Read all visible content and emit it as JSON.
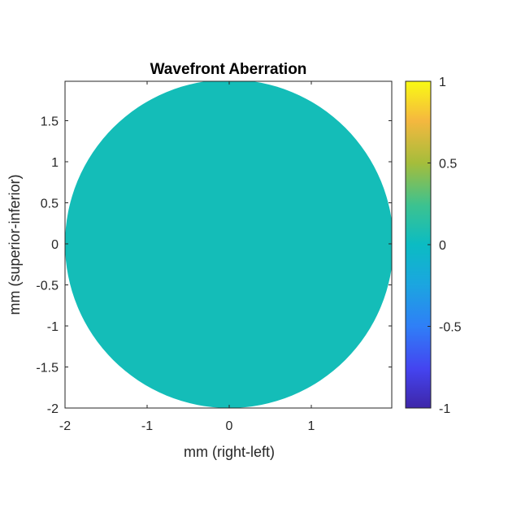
{
  "chart_data": {
    "type": "heatmap",
    "title": "Wavefront Aberration",
    "xlabel": "mm (right-left)",
    "ylabel": "mm (superior-inferior)",
    "xlim": [
      -2,
      1.98
    ],
    "ylim": [
      -2,
      1.98
    ],
    "xticks": [
      -2,
      -1,
      0,
      1
    ],
    "xtick_labels": [
      "-2",
      "-1",
      "0",
      "1"
    ],
    "yticks": [
      -2,
      -1.5,
      -1,
      -0.5,
      0,
      0.5,
      1,
      1.5
    ],
    "ytick_labels": [
      "-2",
      "-1.5",
      "-1",
      "-0.5",
      "0",
      "0.5",
      "1",
      "1.5"
    ],
    "pupil": {
      "center": [
        0,
        0
      ],
      "radius": 2,
      "value": 0
    },
    "colorbar": {
      "colormap": "parula",
      "range": [
        -1,
        1
      ],
      "ticks": [
        -1,
        -0.5,
        0,
        0.5,
        1
      ],
      "tick_labels": [
        "-1",
        "-0.5",
        "0",
        "0.5",
        "1"
      ]
    },
    "grid": false
  }
}
